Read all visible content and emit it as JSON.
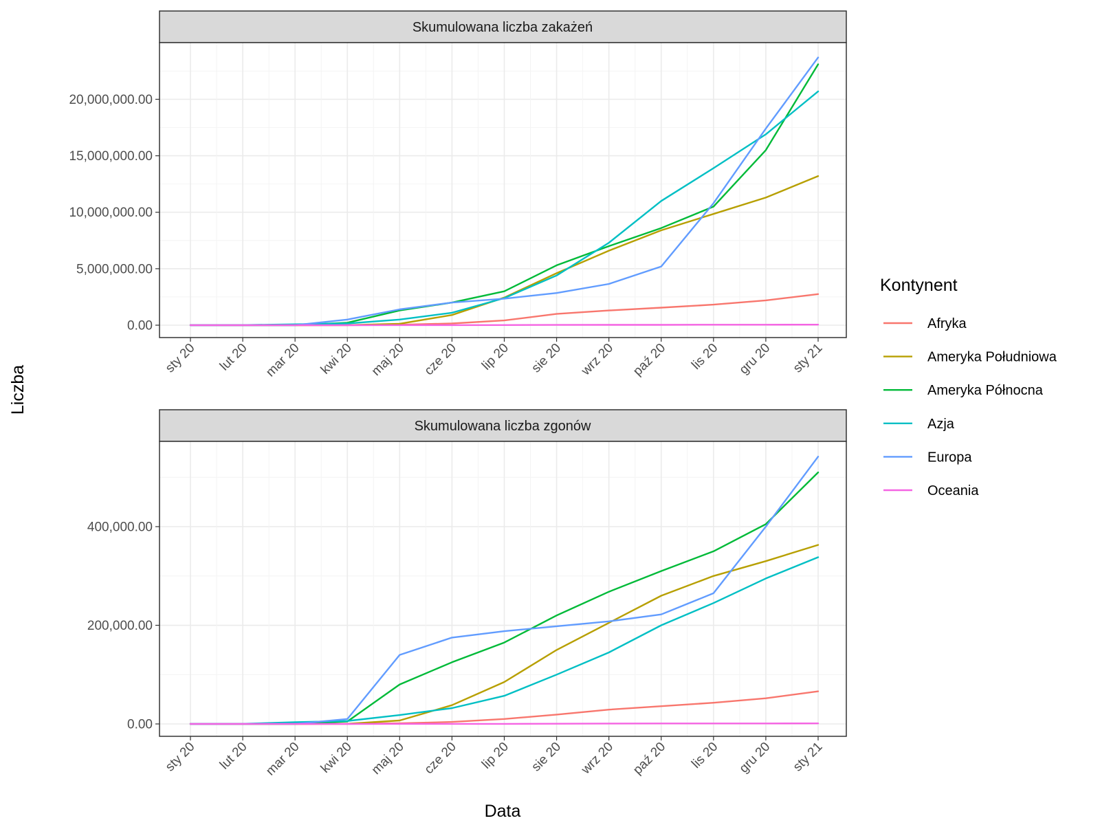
{
  "chart_data": {
    "type": "line",
    "xlabel": "Data",
    "ylabel": "Liczba",
    "x_ticks": [
      "sty 20",
      "lut 20",
      "mar 20",
      "kwi 20",
      "maj 20",
      "cze 20",
      "lip 20",
      "sie 20",
      "wrz 20",
      "paź 20",
      "lis 20",
      "gru 20",
      "sty 21"
    ],
    "x": [
      "sty 20",
      "lut 20",
      "mar 20",
      "kwi 20",
      "maj 20",
      "cze 20",
      "lip 20",
      "sie 20",
      "wrz 20",
      "paź 20",
      "lis 20",
      "gru 20",
      "sty 21"
    ],
    "legend": {
      "title": "Kontynent",
      "position": "right",
      "items": [
        {
          "name": "Afryka",
          "color": "#F8766D"
        },
        {
          "name": "Ameryka Południowa",
          "color": "#B79F00"
        },
        {
          "name": "Ameryka Północna",
          "color": "#00BA38"
        },
        {
          "name": "Azja",
          "color": "#00BFC4"
        },
        {
          "name": "Europa",
          "color": "#619CFF"
        },
        {
          "name": "Oceania",
          "color": "#F564E3"
        }
      ]
    },
    "grid": true,
    "panels": [
      {
        "title": "Skumulowana liczba zakażeń",
        "ylim": [
          0,
          23800000
        ],
        "y_ticks": [
          "0.00",
          "5,000,000.00",
          "10,000,000.00",
          "15,000,000.00",
          "20,000,000.00"
        ],
        "series": [
          {
            "name": "Afryka",
            "values": [
              0,
              0,
              0,
              5000,
              40000,
              150000,
              420000,
              1000000,
              1300000,
              1550000,
              1820000,
              2200000,
              2750000
            ]
          },
          {
            "name": "Ameryka Południowa",
            "values": [
              0,
              0,
              0,
              8000,
              130000,
              900000,
              2450000,
              4600000,
              6600000,
              8400000,
              9850000,
              11300000,
              13200000
            ]
          },
          {
            "name": "Ameryka Północna",
            "values": [
              0,
              0,
              20,
              220000,
              1300000,
              2000000,
              3000000,
              5300000,
              7000000,
              8600000,
              10500000,
              15500000,
              23100000
            ]
          },
          {
            "name": "Azja",
            "values": [
              0,
              10000,
              80000,
              150000,
              500000,
              1100000,
              2400000,
              4400000,
              7300000,
              11000000,
              13900000,
              16900000,
              20700000
            ]
          },
          {
            "name": "Europa",
            "values": [
              0,
              0,
              50,
              500000,
              1400000,
              2000000,
              2350000,
              2850000,
              3650000,
              5200000,
              10800000,
              17400000,
              23700000
            ]
          },
          {
            "name": "Oceania",
            "values": [
              0,
              0,
              0,
              3000,
              8000,
              9000,
              12000,
              25000,
              30000,
              33000,
              40000,
              45000,
              50000
            ]
          }
        ]
      },
      {
        "title": "Skumulowana liczba zgonów",
        "ylim": [
          0,
          545000
        ],
        "y_ticks": [
          "0.00",
          "200,000.00",
          "400,000.00"
        ],
        "series": [
          {
            "name": "Afryka",
            "values": [
              0,
              0,
              0,
              100,
              1200,
              4000,
              10000,
              19000,
              29000,
              36000,
              43000,
              52000,
              66000
            ]
          },
          {
            "name": "Ameryka Południowa",
            "values": [
              0,
              0,
              0,
              300,
              7000,
              38000,
              85000,
              150000,
              205000,
              260000,
              300000,
              330000,
              363000
            ]
          },
          {
            "name": "Ameryka Północna",
            "values": [
              0,
              0,
              50,
              5000,
              80000,
              125000,
              165000,
              220000,
              268000,
              310000,
              350000,
              405000,
              510000
            ]
          },
          {
            "name": "Azja",
            "values": [
              0,
              300,
              3500,
              6000,
              18000,
              32000,
              57000,
              100000,
              145000,
              200000,
              245000,
              295000,
              338000
            ]
          },
          {
            "name": "Europa",
            "values": [
              0,
              0,
              100,
              10000,
              140000,
              175000,
              188000,
              198000,
              208000,
              222000,
              265000,
              400000,
              542000
            ]
          },
          {
            "name": "Oceania",
            "values": [
              0,
              0,
              0,
              20,
              100,
              130,
              150,
              400,
              900,
              1000,
              1000,
              1000,
              1050
            ]
          }
        ]
      }
    ]
  }
}
